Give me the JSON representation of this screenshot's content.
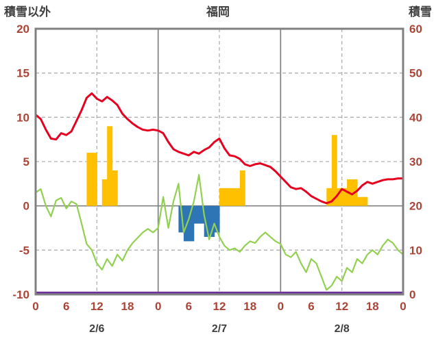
{
  "chart_data": {
    "type": "line",
    "title": "福岡",
    "left_axis_title": "積雪以外",
    "right_axis_title": "積雪",
    "left_axis": {
      "min": -10,
      "max": 20,
      "ticks": [
        20,
        15,
        10,
        5,
        0,
        -5,
        -10
      ]
    },
    "right_axis": {
      "min": 0,
      "max": 60,
      "ticks": [
        60,
        50,
        40,
        30,
        20,
        10,
        0
      ]
    },
    "x_axis": {
      "hours_total": 72,
      "tick_interval": 6,
      "tick_labels": [
        "0",
        "6",
        "12",
        "18",
        "0",
        "6",
        "12",
        "18",
        "0",
        "6",
        "12",
        "18",
        "0"
      ],
      "date_labels": [
        {
          "label": "2/6",
          "hour": 12
        },
        {
          "label": "2/7",
          "hour": 36
        },
        {
          "label": "2/8",
          "hour": 60
        }
      ]
    },
    "grid": {
      "h_dashed": [
        15,
        10,
        5,
        -5
      ],
      "h_solid": [
        0
      ],
      "v_dashed": [
        12,
        36,
        60
      ],
      "v_solid": [
        24,
        48
      ]
    },
    "series": {
      "red_line": {
        "color": "#e60020",
        "axis": "left",
        "values": [
          10.3,
          9.8,
          8.6,
          7.6,
          7.5,
          8.2,
          8.0,
          8.4,
          9.6,
          10.8,
          12.2,
          12.7,
          12.1,
          11.8,
          12.3,
          11.9,
          11.4,
          10.4,
          9.8,
          9.3,
          8.9,
          8.6,
          8.5,
          8.6,
          8.5,
          8.2,
          7.2,
          6.4,
          6.1,
          5.9,
          5.7,
          6.1,
          5.9,
          6.3,
          6.6,
          7.2,
          7.6,
          6.5,
          5.7,
          5.6,
          5.3,
          4.7,
          4.5,
          4.7,
          4.8,
          4.6,
          4.4,
          3.9,
          3.3,
          2.7,
          2.1,
          1.9,
          2.0,
          1.6,
          1.1,
          0.8,
          0.5,
          0.3,
          0.5,
          1.1,
          1.9,
          1.6,
          1.3,
          1.7,
          2.3,
          2.7,
          2.5,
          2.7,
          2.9,
          3.0,
          3.0,
          3.1,
          3.1
        ]
      },
      "green_line": {
        "color": "#92d050",
        "axis": "left",
        "values": [
          1.5,
          1.9,
          0.0,
          -1.2,
          0.6,
          0.9,
          -0.3,
          0.5,
          0.2,
          -2.0,
          -4.3,
          -5.0,
          -6.5,
          -7.2,
          -6.0,
          -6.8,
          -5.5,
          -6.2,
          -5.0,
          -4.2,
          -3.6,
          -3.0,
          -2.6,
          -3.0,
          -2.5,
          1.0,
          -2.5,
          0.5,
          2.5,
          -3.0,
          -1.5,
          0.5,
          3.5,
          -1.0,
          -3.8,
          -2.0,
          -3.5,
          -4.5,
          -5.0,
          -4.8,
          -5.2,
          -4.5,
          -4.0,
          -4.2,
          -3.5,
          -3.0,
          -3.5,
          -4.0,
          -4.3,
          -5.5,
          -5.8,
          -5.2,
          -6.5,
          -7.5,
          -6.0,
          -6.5,
          -8.0,
          -9.5,
          -9.0,
          -8.0,
          -8.5,
          -7.0,
          -7.5,
          -6.0,
          -6.5,
          -5.5,
          -5.0,
          -5.5,
          -4.5,
          -3.8,
          -4.2,
          -5.0,
          -5.5
        ]
      },
      "orange_bars": {
        "color": "#ffc000",
        "axis": "left",
        "data": [
          [
            11,
            6
          ],
          [
            12,
            6
          ],
          [
            14,
            3
          ],
          [
            15,
            9
          ],
          [
            16,
            4
          ],
          [
            37,
            2
          ],
          [
            38,
            2
          ],
          [
            39,
            2
          ],
          [
            40,
            2
          ],
          [
            41,
            4
          ],
          [
            58,
            2
          ],
          [
            59,
            8
          ],
          [
            60,
            2
          ],
          [
            61,
            2
          ],
          [
            62,
            3
          ],
          [
            63,
            3
          ],
          [
            64,
            1
          ],
          [
            65,
            1
          ]
        ]
      },
      "blue_bars": {
        "color": "#2e75b6",
        "axis": "left",
        "data": [
          [
            29,
            -3
          ],
          [
            30,
            -4
          ],
          [
            31,
            -4
          ],
          [
            32,
            -2
          ],
          [
            33,
            -2
          ],
          [
            34,
            -3.5
          ],
          [
            35,
            -3.5
          ],
          [
            36,
            -3
          ]
        ]
      },
      "purple_line": {
        "color": "#7030a0",
        "axis": "right",
        "constant_value": 0
      }
    },
    "colors": {
      "border": "#808080",
      "grid_dashed": "#b0b0b0",
      "grid_solid": "#808080",
      "tick_text": "#a94436",
      "title_text": "#404040"
    }
  }
}
